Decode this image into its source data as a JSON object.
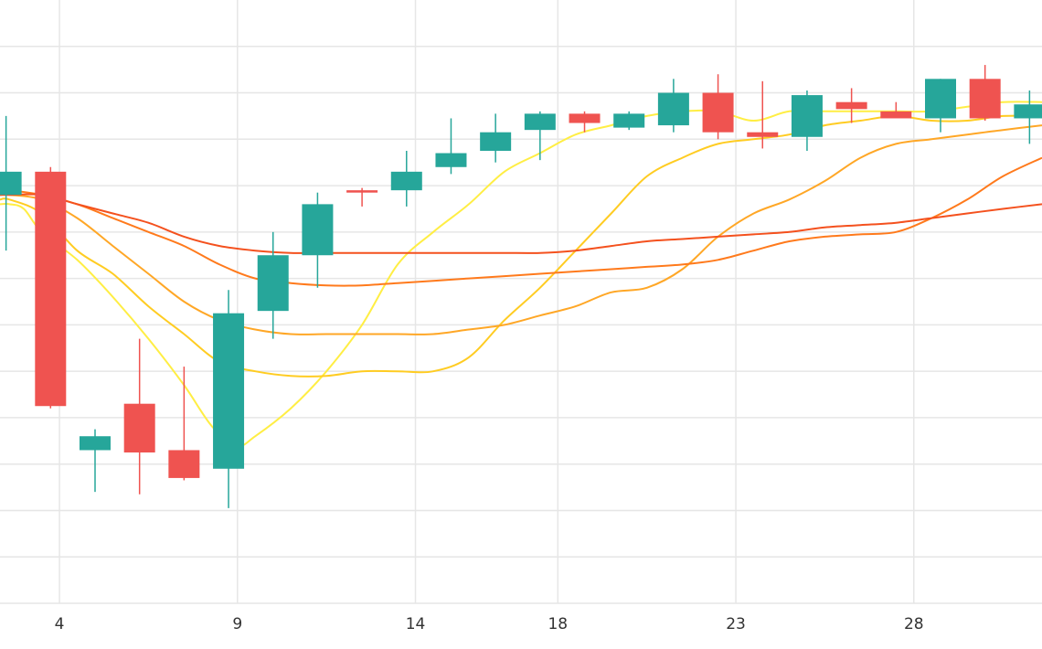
{
  "chart_data": {
    "type": "candlestick",
    "title": "",
    "xlabel": "",
    "ylabel": "",
    "x_tick_labels": [
      {
        "day": 4,
        "label": "4"
      },
      {
        "day": 9,
        "label": "9"
      },
      {
        "day": 14,
        "label": "14"
      },
      {
        "day": 18,
        "label": "18"
      },
      {
        "day": 23,
        "label": "23"
      },
      {
        "day": 28,
        "label": "28"
      }
    ],
    "x_range": [
      2.33,
      31.6
    ],
    "y_range": [
      0,
      130
    ],
    "y_gridlines": [
      10,
      20,
      30,
      40,
      50,
      60,
      70,
      80,
      90,
      100,
      110,
      120
    ],
    "up_color": "#26a69a",
    "down_color": "#ef5350",
    "candles": [
      {
        "day": 2.5,
        "open": 88,
        "high": 105,
        "low": 76,
        "close": 93
      },
      {
        "day": 3.75,
        "open": 93,
        "high": 94,
        "low": 42,
        "close": 42.5
      },
      {
        "day": 5,
        "open": 33,
        "high": 37.5,
        "low": 24,
        "close": 36
      },
      {
        "day": 6.25,
        "open": 43,
        "high": 57,
        "low": 23.5,
        "close": 32.5
      },
      {
        "day": 7.5,
        "open": 33,
        "high": 51,
        "low": 26.5,
        "close": 27
      },
      {
        "day": 8.75,
        "open": 29,
        "high": 67.5,
        "low": 20.5,
        "close": 62.5
      },
      {
        "day": 10,
        "open": 63,
        "high": 80,
        "low": 57,
        "close": 75
      },
      {
        "day": 11.25,
        "open": 75,
        "high": 88.5,
        "low": 68,
        "close": 86
      },
      {
        "day": 12.5,
        "open": 89,
        "high": 89.5,
        "low": 85.5,
        "close": 88.5
      },
      {
        "day": 13.75,
        "open": 89,
        "high": 97.5,
        "low": 85.5,
        "close": 93
      },
      {
        "day": 15,
        "open": 94,
        "high": 104.5,
        "low": 92.5,
        "close": 97
      },
      {
        "day": 16.25,
        "open": 97.5,
        "high": 105.5,
        "low": 95,
        "close": 101.5
      },
      {
        "day": 17.5,
        "open": 102,
        "high": 106,
        "low": 95.5,
        "close": 105.5
      },
      {
        "day": 18.75,
        "open": 105.5,
        "high": 106,
        "low": 101.5,
        "close": 103.5
      },
      {
        "day": 20,
        "open": 102.5,
        "high": 106,
        "low": 102,
        "close": 105.5
      },
      {
        "day": 21.25,
        "open": 103,
        "high": 113,
        "low": 101.5,
        "close": 110
      },
      {
        "day": 22.5,
        "open": 110,
        "high": 114,
        "low": 100,
        "close": 101.5
      },
      {
        "day": 23.75,
        "open": 101.5,
        "high": 112.5,
        "low": 98,
        "close": 100.5
      },
      {
        "day": 25,
        "open": 100.5,
        "high": 110.5,
        "low": 97.5,
        "close": 109.5
      },
      {
        "day": 26.25,
        "open": 108,
        "high": 111,
        "low": 103.5,
        "close": 106.5
      },
      {
        "day": 27.5,
        "open": 106,
        "high": 108,
        "low": 105,
        "close": 104.5
      },
      {
        "day": 28.75,
        "open": 104.5,
        "high": 113,
        "low": 101.5,
        "close": 113
      },
      {
        "day": 30,
        "open": 113,
        "high": 116,
        "low": 104,
        "close": 104.5
      },
      {
        "day": 31.25,
        "open": 104.5,
        "high": 110.5,
        "low": 99,
        "close": 107.5
      }
    ],
    "moving_averages": [
      {
        "color": "#ffee44",
        "points": [
          [
            2.33,
            86
          ],
          [
            2.6,
            86
          ],
          [
            3.0,
            85
          ],
          [
            3.5,
            80
          ],
          [
            4.5,
            74
          ],
          [
            5.5,
            66
          ],
          [
            6.5,
            57
          ],
          [
            7.5,
            47
          ],
          [
            8.3,
            38
          ],
          [
            9.0,
            34
          ],
          [
            9.5,
            36
          ],
          [
            10.5,
            42
          ],
          [
            11.5,
            50
          ],
          [
            12.5,
            60
          ],
          [
            13.5,
            73
          ],
          [
            14.5,
            80
          ],
          [
            15.5,
            86
          ],
          [
            16.5,
            93
          ],
          [
            17.5,
            97
          ],
          [
            18.5,
            101
          ],
          [
            19.5,
            103
          ],
          [
            20.5,
            105
          ],
          [
            21.5,
            106
          ],
          [
            22.5,
            106
          ],
          [
            23.5,
            104
          ],
          [
            24.5,
            106
          ],
          [
            25.5,
            106
          ],
          [
            26.5,
            106
          ],
          [
            27.5,
            106
          ],
          [
            28.5,
            106
          ],
          [
            29.5,
            107
          ],
          [
            30.5,
            108
          ],
          [
            31.6,
            108
          ]
        ]
      },
      {
        "color": "#ffcc22",
        "points": [
          [
            2.33,
            87
          ],
          [
            2.6,
            87
          ],
          [
            3.5,
            84
          ],
          [
            4.5,
            76
          ],
          [
            5.5,
            71
          ],
          [
            6.5,
            64
          ],
          [
            7.5,
            58
          ],
          [
            8.5,
            52
          ],
          [
            9.5,
            50
          ],
          [
            10.5,
            49
          ],
          [
            11.5,
            49
          ],
          [
            12.5,
            50
          ],
          [
            13.5,
            50
          ],
          [
            14.5,
            50
          ],
          [
            15.5,
            53
          ],
          [
            16.5,
            61
          ],
          [
            17.5,
            68
          ],
          [
            18.5,
            76
          ],
          [
            19.5,
            84
          ],
          [
            20.5,
            92
          ],
          [
            21.5,
            96
          ],
          [
            22.5,
            99
          ],
          [
            23.5,
            100
          ],
          [
            24.5,
            101
          ],
          [
            25.5,
            103
          ],
          [
            26.5,
            104
          ],
          [
            27.5,
            105
          ],
          [
            28.5,
            104
          ],
          [
            29.5,
            104
          ],
          [
            30.5,
            105
          ],
          [
            31.6,
            105
          ]
        ]
      },
      {
        "color": "#ffa726",
        "points": [
          [
            2.33,
            88
          ],
          [
            2.6,
            88
          ],
          [
            3.5,
            87
          ],
          [
            4.5,
            83
          ],
          [
            5.5,
            77
          ],
          [
            6.5,
            71
          ],
          [
            7.5,
            65
          ],
          [
            8.5,
            61
          ],
          [
            9.5,
            59
          ],
          [
            10.5,
            58
          ],
          [
            11.5,
            58
          ],
          [
            12.5,
            58
          ],
          [
            13.5,
            58
          ],
          [
            14.5,
            58
          ],
          [
            15.5,
            59
          ],
          [
            16.5,
            60
          ],
          [
            17.5,
            62
          ],
          [
            18.5,
            64
          ],
          [
            19.5,
            67
          ],
          [
            20.5,
            68
          ],
          [
            21.5,
            72
          ],
          [
            22.5,
            79
          ],
          [
            23.5,
            84
          ],
          [
            24.5,
            87
          ],
          [
            25.5,
            91
          ],
          [
            26.5,
            96
          ],
          [
            27.5,
            99
          ],
          [
            28.5,
            100
          ],
          [
            29.5,
            101
          ],
          [
            30.5,
            102
          ],
          [
            31.6,
            103
          ]
        ]
      },
      {
        "color": "#ff7a1c",
        "points": [
          [
            2.33,
            89
          ],
          [
            2.6,
            89
          ],
          [
            3.5,
            88
          ],
          [
            4.5,
            86
          ],
          [
            5.5,
            83
          ],
          [
            6.5,
            80
          ],
          [
            7.5,
            77
          ],
          [
            8.5,
            73
          ],
          [
            9.5,
            70
          ],
          [
            10.5,
            69
          ],
          [
            11.5,
            68.5
          ],
          [
            12.5,
            68.5
          ],
          [
            13.5,
            69
          ],
          [
            14.5,
            69.5
          ],
          [
            15.5,
            70
          ],
          [
            16.5,
            70.5
          ],
          [
            17.5,
            71
          ],
          [
            18.5,
            71.5
          ],
          [
            19.5,
            72
          ],
          [
            20.5,
            72.5
          ],
          [
            21.5,
            73
          ],
          [
            22.5,
            74
          ],
          [
            23.5,
            76
          ],
          [
            24.5,
            78
          ],
          [
            25.5,
            79
          ],
          [
            26.5,
            79.5
          ],
          [
            27.5,
            80
          ],
          [
            28.5,
            83
          ],
          [
            29.5,
            87
          ],
          [
            30.5,
            92
          ],
          [
            31.6,
            96
          ]
        ]
      },
      {
        "color": "#f4511e",
        "points": [
          [
            2.33,
            88
          ],
          [
            2.6,
            88
          ],
          [
            3.5,
            88
          ],
          [
            4.5,
            86
          ],
          [
            5.5,
            84
          ],
          [
            6.5,
            82
          ],
          [
            7.5,
            79
          ],
          [
            8.5,
            77
          ],
          [
            9.5,
            76
          ],
          [
            10.5,
            75.5
          ],
          [
            11.5,
            75.5
          ],
          [
            12.5,
            75.5
          ],
          [
            13.5,
            75.5
          ],
          [
            14.5,
            75.5
          ],
          [
            15.5,
            75.5
          ],
          [
            16.5,
            75.5
          ],
          [
            17.5,
            75.5
          ],
          [
            18.5,
            76
          ],
          [
            19.5,
            77
          ],
          [
            20.5,
            78
          ],
          [
            21.5,
            78.5
          ],
          [
            22.5,
            79
          ],
          [
            23.5,
            79.5
          ],
          [
            24.5,
            80
          ],
          [
            25.5,
            81
          ],
          [
            26.5,
            81.5
          ],
          [
            27.5,
            82
          ],
          [
            28.5,
            83
          ],
          [
            29.5,
            84
          ],
          [
            30.5,
            85
          ],
          [
            31.6,
            86
          ]
        ]
      }
    ]
  }
}
